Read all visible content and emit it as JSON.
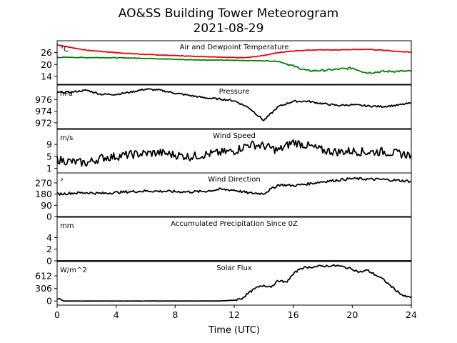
{
  "figure": {
    "title_line1": "AO&SS Building Tower Meteorogram",
    "title_line2": "2021-08-29",
    "xlabel": "Time (UTC)",
    "x_ticks": [
      "0",
      "4",
      "8",
      "12",
      "16",
      "20",
      "24"
    ]
  },
  "chart_data": [
    {
      "type": "line",
      "title": "Air and Dewpoint Temperature",
      "unit_label": "°C",
      "xlim": [
        0,
        24
      ],
      "ylim": [
        10,
        32
      ],
      "y_ticks": [
        14,
        20,
        26
      ],
      "y_tick_labels": [
        "14",
        "20",
        "26"
      ],
      "x": [
        0,
        1,
        2,
        3,
        4,
        5,
        6,
        7,
        8,
        9,
        10,
        11,
        12,
        13,
        14,
        15,
        16,
        17,
        18,
        19,
        20,
        21,
        22,
        23,
        24
      ],
      "series": [
        {
          "values": [
            30.0,
            28.5,
            27.2,
            26.6,
            26.0,
            25.5,
            25.1,
            24.8,
            24.5,
            24.2,
            24.0,
            23.8,
            23.5,
            23.6,
            24.5,
            26.0,
            26.8,
            27.3,
            27.4,
            27.4,
            27.6,
            27.6,
            27.3,
            26.6,
            26.2
          ],
          "color": "#e8000b"
        },
        {
          "values": [
            23.6,
            23.6,
            23.5,
            23.5,
            23.4,
            23.3,
            23.1,
            22.9,
            22.6,
            22.4,
            22.3,
            22.2,
            22.1,
            22.0,
            21.9,
            21.6,
            19.2,
            16.8,
            17.0,
            17.6,
            18.2,
            15.8,
            16.4,
            16.6,
            16.6
          ],
          "color": "#008000"
        }
      ]
    },
    {
      "type": "line",
      "title": "Pressure",
      "unit_label": "hPa",
      "xlim": [
        0,
        24
      ],
      "ylim": [
        971.0,
        978.5
      ],
      "y_ticks": [
        972,
        974,
        976
      ],
      "y_tick_labels": [
        "972",
        "974",
        "976"
      ],
      "x": [
        0,
        1,
        2,
        3,
        4,
        5,
        6,
        7,
        8,
        9,
        10,
        11,
        12,
        13,
        14,
        15,
        16,
        17,
        18,
        19,
        20,
        21,
        22,
        23,
        24
      ],
      "series": [
        {
          "values": [
            977.2,
            977.3,
            977.6,
            976.9,
            976.9,
            977.3,
            977.8,
            977.6,
            977.1,
            976.7,
            976.3,
            976.1,
            975.8,
            974.6,
            972.4,
            974.8,
            975.7,
            975.7,
            975.3,
            975.0,
            975.1,
            974.9,
            974.8,
            975.0,
            975.4
          ],
          "color": "#000000"
        }
      ]
    },
    {
      "type": "line",
      "title": "Wind Speed",
      "unit_label": "m/s",
      "xlim": [
        0,
        24
      ],
      "ylim": [
        -0.5,
        14
      ],
      "y_ticks": [
        1,
        5,
        9
      ],
      "y_tick_labels": [
        "1",
        "5",
        "9"
      ],
      "x": [
        0,
        1,
        2,
        3,
        4,
        5,
        6,
        7,
        8,
        9,
        10,
        11,
        12,
        13,
        14,
        15,
        16,
        17,
        18,
        19,
        20,
        21,
        22,
        23,
        24
      ],
      "series": [
        {
          "values": [
            4.0,
            3.2,
            2.8,
            4.5,
            5.0,
            5.6,
            6.0,
            6.2,
            5.5,
            4.9,
            5.6,
            6.2,
            6.8,
            9.0,
            8.5,
            7.0,
            9.8,
            8.5,
            7.0,
            6.5,
            6.8,
            6.4,
            6.6,
            6.0,
            5.5
          ],
          "color": "#000000"
        }
      ]
    },
    {
      "type": "line",
      "title": "Wind Direction",
      "unit_label": "°",
      "xlim": [
        0,
        24
      ],
      "ylim": [
        0,
        350
      ],
      "y_ticks": [
        0,
        90,
        180,
        270
      ],
      "y_tick_labels": [
        "0",
        "90",
        "180",
        "270"
      ],
      "x": [
        0,
        1,
        2,
        3,
        4,
        5,
        6,
        7,
        8,
        9,
        10,
        11,
        12,
        13,
        14,
        15,
        16,
        17,
        18,
        19,
        20,
        21,
        22,
        23,
        24
      ],
      "series": [
        {
          "values": [
            180,
            188,
            192,
            185,
            193,
            200,
            205,
            203,
            200,
            198,
            202,
            218,
            212,
            188,
            185,
            255,
            248,
            262,
            280,
            292,
            305,
            300,
            298,
            290,
            283
          ],
          "color": "#000000"
        }
      ]
    },
    {
      "type": "line",
      "title": "Accumulated Precipitation Since 0Z",
      "unit_label": "mm",
      "xlim": [
        0,
        24
      ],
      "ylim": [
        0,
        7.5
      ],
      "y_ticks": [
        0,
        2,
        4
      ],
      "y_tick_labels": [
        "0",
        "2",
        "4"
      ],
      "x": [
        0,
        24
      ],
      "series": [
        {
          "values": [
            0,
            0
          ],
          "color": "#000000"
        }
      ]
    },
    {
      "type": "line",
      "title": "Solar Flux",
      "unit_label": "W/m^2",
      "xlim": [
        0,
        24
      ],
      "ylim": [
        -100,
        960
      ],
      "y_ticks": [
        0,
        306,
        612
      ],
      "y_tick_labels": [
        "0",
        "306",
        "612"
      ],
      "x": [
        0,
        0.5,
        1,
        2,
        4,
        6,
        8,
        10,
        11,
        12,
        12.5,
        13,
        13.5,
        14,
        14.5,
        15,
        15.5,
        16,
        16.5,
        17,
        18,
        19,
        20,
        20.5,
        21,
        22,
        22.5,
        23,
        23.5,
        24
      ],
      "series": [
        {
          "values": [
            60,
            0,
            0,
            0,
            0,
            0,
            0,
            0,
            0,
            20,
            60,
            200,
            320,
            380,
            350,
            500,
            450,
            650,
            800,
            820,
            850,
            860,
            780,
            700,
            750,
            550,
            400,
            250,
            120,
            80
          ],
          "color": "#000000"
        }
      ]
    }
  ]
}
